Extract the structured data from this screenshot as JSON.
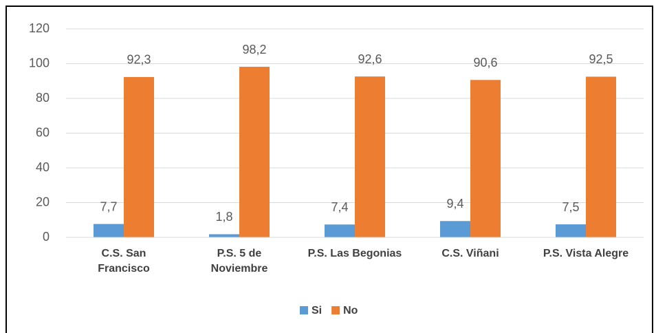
{
  "chart_data": {
    "type": "bar",
    "categories": [
      "C.S. San\nFrancisco",
      "P.S. 5 de\nNoviembre",
      "P.S. Las Begonias",
      "C.S. Viñani",
      "P.S. Vista Alegre"
    ],
    "series": [
      {
        "name": "Si",
        "color": "#5b9bd5",
        "values": [
          7.7,
          1.8,
          7.4,
          9.4,
          7.5
        ],
        "value_labels": [
          "7,7",
          "1,8",
          "7,4",
          "9,4",
          "7,5"
        ]
      },
      {
        "name": "No",
        "color": "#ed7d31",
        "values": [
          92.3,
          98.2,
          92.6,
          90.6,
          92.5
        ],
        "value_labels": [
          "92,3",
          "98,2",
          "92,6",
          "90,6",
          "92,5"
        ]
      }
    ],
    "ylim": [
      0,
      120
    ],
    "yticks": [
      0,
      20,
      40,
      60,
      80,
      100,
      120
    ],
    "grid": true,
    "legend": "bottom"
  }
}
